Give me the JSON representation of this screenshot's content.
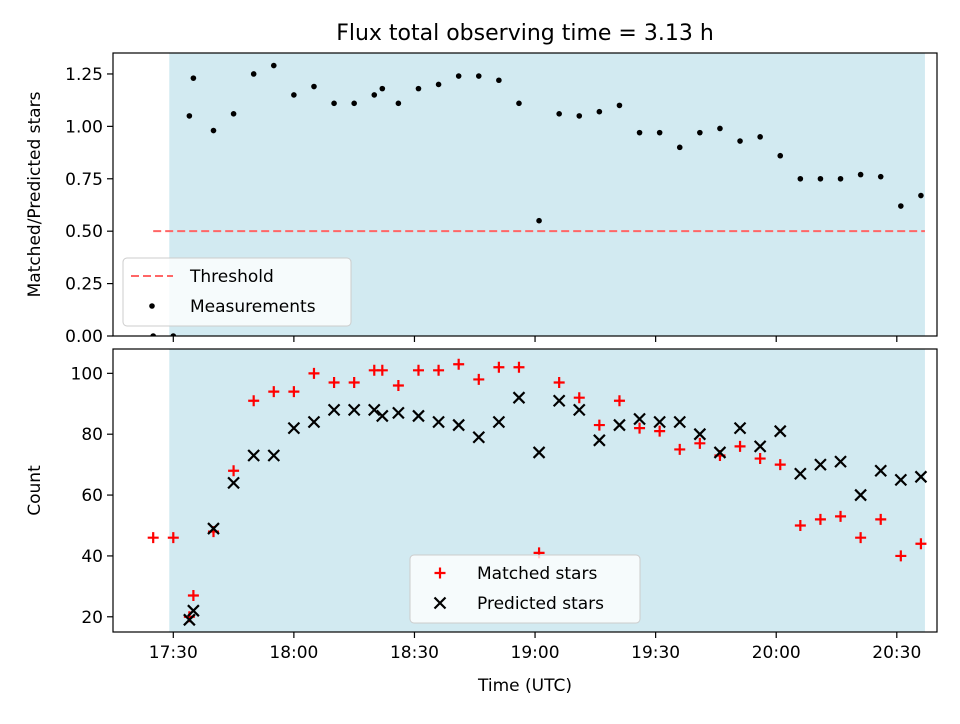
{
  "title": "Flux total observing time = 3.13 h",
  "colors": {
    "shade": "#add8e6",
    "threshold": "#ff6666",
    "measurement": "#000000",
    "matched": "#ff0000",
    "predicted": "#000000"
  },
  "chart_data": [
    {
      "type": "scatter",
      "panel": "top",
      "ylabel": "Matched/Predicted stars",
      "xlim": [
        1035,
        1240
      ],
      "ylim": [
        0,
        1.35
      ],
      "yticks": [
        0.0,
        0.25,
        0.5,
        0.75,
        1.0,
        1.25
      ],
      "ytick_labels": [
        "0.00",
        "0.25",
        "0.50",
        "0.75",
        "1.00",
        "1.25"
      ],
      "xticks": [
        1050,
        1080,
        1110,
        1140,
        1170,
        1200,
        1230
      ],
      "shaded_span": [
        1049,
        1237
      ],
      "legend_position": "lower left",
      "threshold": {
        "name": "Threshold",
        "value": 0.5,
        "x": [
          1045,
          1237
        ]
      },
      "series": [
        {
          "name": "Measurements",
          "x": [
            1045,
            1050,
            1054,
            1055,
            1060,
            1065,
            1070,
            1075,
            1080,
            1085,
            1090,
            1095,
            1100,
            1102,
            1106,
            1111,
            1116,
            1121,
            1126,
            1131,
            1136,
            1141,
            1146,
            1151,
            1156,
            1161,
            1166,
            1171,
            1176,
            1181,
            1186,
            1191,
            1196,
            1201,
            1206,
            1211,
            1216,
            1221,
            1226,
            1231,
            1236
          ],
          "y": [
            0.0,
            0.0,
            1.05,
            1.23,
            0.98,
            1.06,
            1.25,
            1.29,
            1.15,
            1.19,
            1.11,
            1.11,
            1.15,
            1.18,
            1.11,
            1.18,
            1.2,
            1.24,
            1.24,
            1.22,
            1.11,
            0.55,
            1.06,
            1.05,
            1.07,
            1.1,
            0.97,
            0.97,
            0.9,
            0.97,
            0.99,
            0.93,
            0.95,
            0.86,
            0.75,
            0.75,
            0.75,
            0.77,
            0.76,
            0.62,
            0.67
          ]
        }
      ]
    },
    {
      "type": "scatter",
      "panel": "bottom",
      "xlabel": "Time (UTC)",
      "ylabel": "Count",
      "xlim": [
        1035,
        1240
      ],
      "ylim": [
        15,
        108
      ],
      "yticks": [
        20,
        40,
        60,
        80,
        100
      ],
      "xticks": [
        1050,
        1080,
        1110,
        1140,
        1170,
        1200,
        1230
      ],
      "xtick_labels": [
        "17:30",
        "18:00",
        "18:30",
        "19:00",
        "19:30",
        "20:00",
        "20:30"
      ],
      "shaded_span": [
        1049,
        1237
      ],
      "legend_position": "lower center",
      "series": [
        {
          "name": "Matched stars",
          "marker": "plus",
          "x": [
            1045,
            1050,
            1054,
            1055,
            1060,
            1065,
            1070,
            1075,
            1080,
            1085,
            1090,
            1095,
            1100,
            1102,
            1106,
            1111,
            1116,
            1121,
            1126,
            1131,
            1136,
            1141,
            1146,
            1151,
            1156,
            1161,
            1166,
            1171,
            1176,
            1181,
            1186,
            1191,
            1196,
            1201,
            1206,
            1211,
            1216,
            1221,
            1226,
            1231,
            1236
          ],
          "y": [
            46,
            46,
            20,
            27,
            48,
            68,
            91,
            94,
            94,
            100,
            97,
            97,
            101,
            101,
            96,
            101,
            101,
            103,
            98,
            102,
            102,
            41,
            97,
            92,
            83,
            91,
            82,
            81,
            75,
            77,
            73,
            76,
            72,
            70,
            50,
            52,
            53,
            46,
            52,
            40,
            44
          ]
        },
        {
          "name": "Predicted stars",
          "marker": "x",
          "x": [
            1054,
            1055,
            1060,
            1065,
            1070,
            1075,
            1080,
            1085,
            1090,
            1095,
            1100,
            1102,
            1106,
            1111,
            1116,
            1121,
            1126,
            1131,
            1136,
            1141,
            1146,
            1151,
            1156,
            1161,
            1166,
            1171,
            1176,
            1181,
            1186,
            1191,
            1196,
            1201,
            1206,
            1211,
            1216,
            1221,
            1226,
            1231,
            1236
          ],
          "y": [
            19,
            22,
            49,
            64,
            73,
            73,
            82,
            84,
            88,
            88,
            88,
            86,
            87,
            86,
            84,
            83,
            79,
            84,
            92,
            74,
            91,
            88,
            78,
            83,
            85,
            84,
            84,
            80,
            74,
            82,
            76,
            81,
            67,
            70,
            71,
            60,
            68,
            65,
            66
          ]
        }
      ]
    }
  ]
}
